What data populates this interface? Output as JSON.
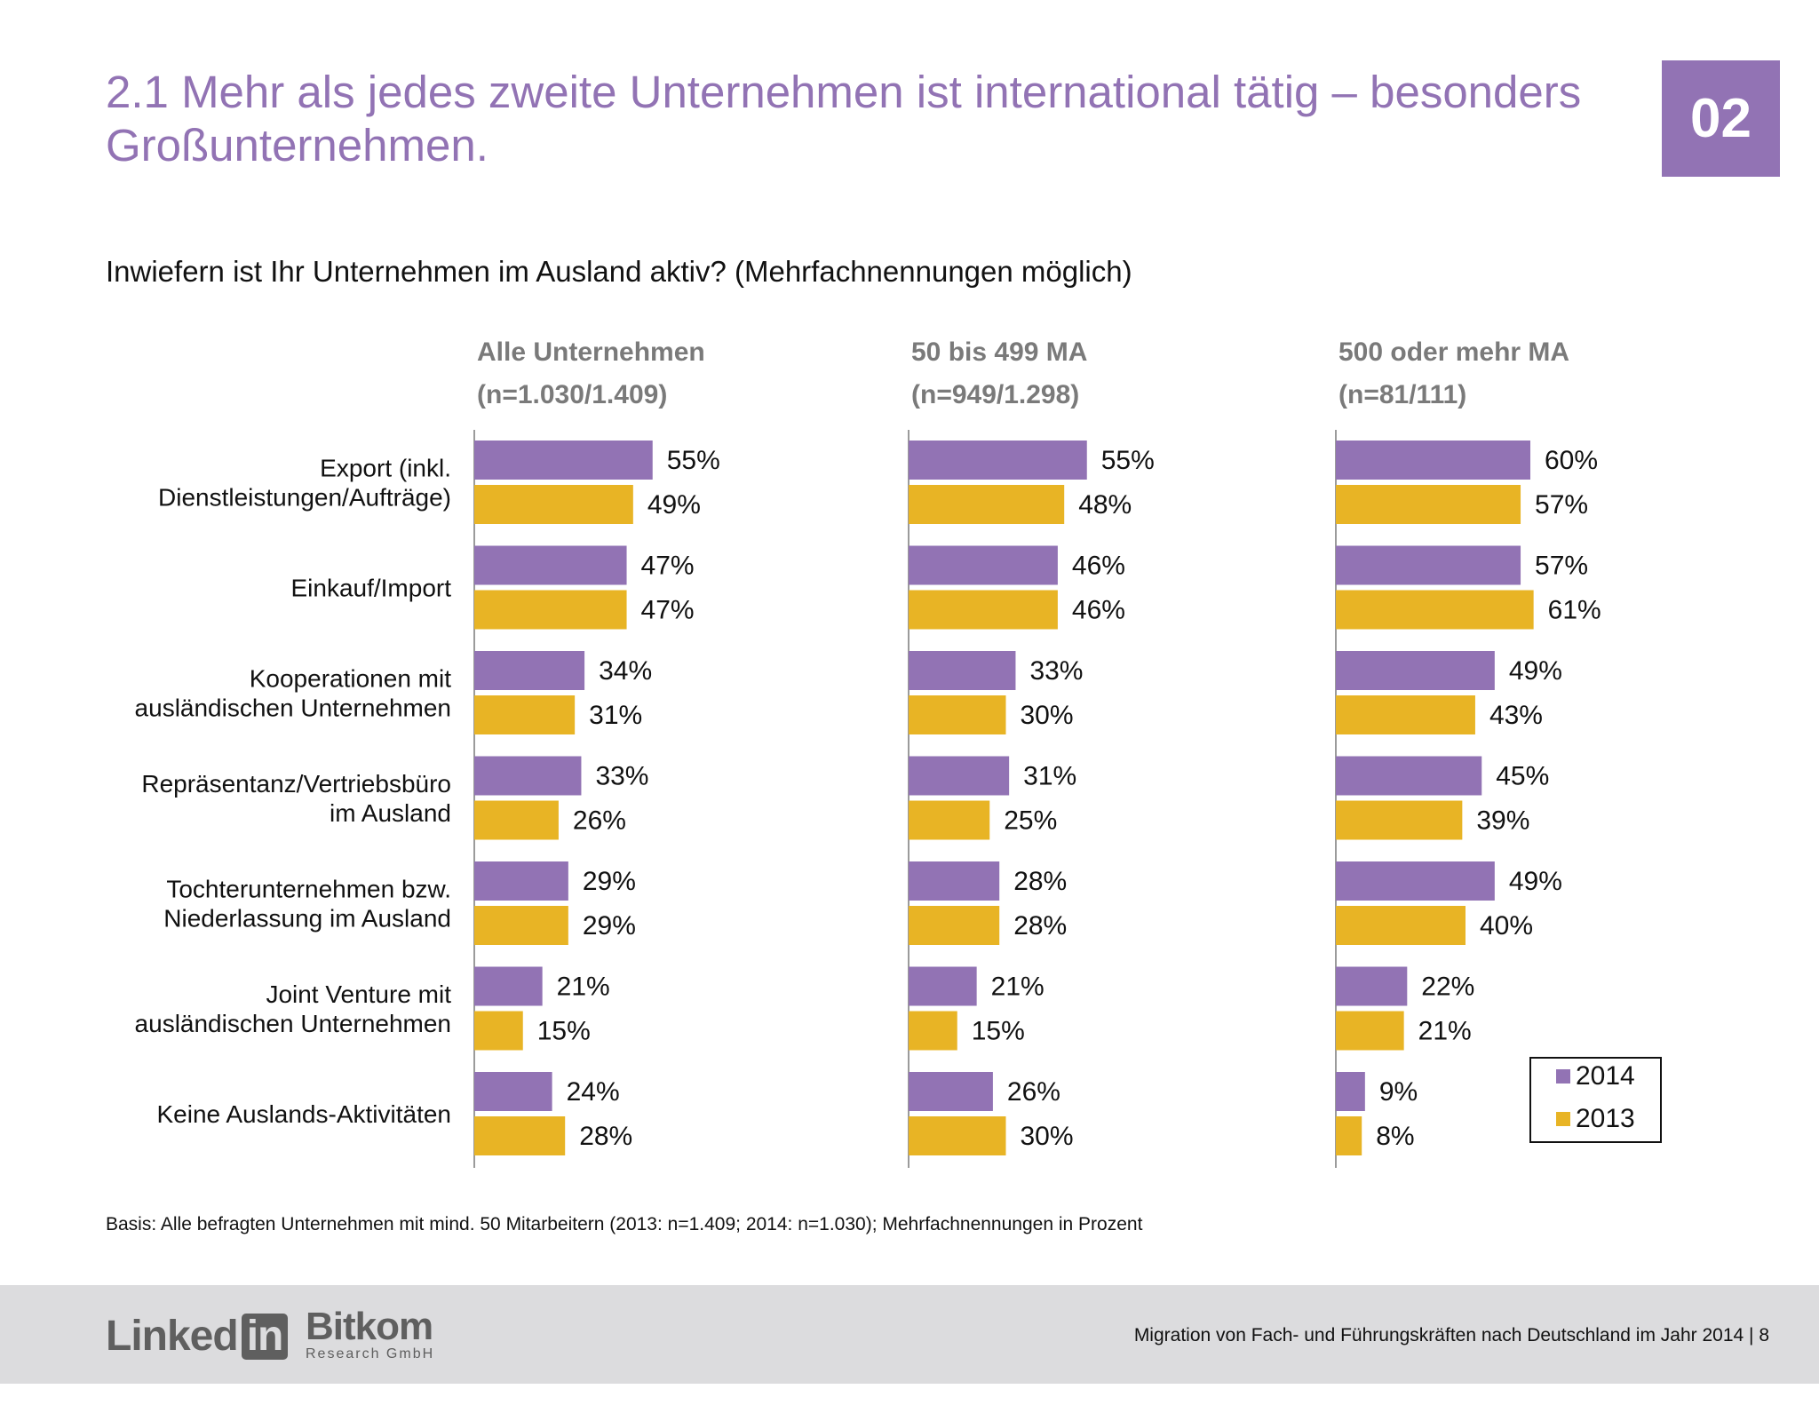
{
  "title": "2.1 Mehr als jedes zweite Unternehmen ist international tätig – besonders Großunternehmen.",
  "badge": "02",
  "question": "Inwiefern ist Ihr Unternehmen im Ausland aktiv? (Mehrfachnennungen möglich)",
  "footnote": "Basis: Alle befragten Unternehmen mit mind. 50 Mitarbeitern (2013: n=1.409; 2014: n=1.030); Mehrfachnennungen in Prozent",
  "footer": {
    "linkedin_text": "Linked",
    "linkedin_box": "in",
    "bitkom_main": "Bitkom",
    "bitkom_sub": "Research GmbH",
    "report": "Migration von Fach- und Führungskräften nach Deutschland im Jahr 2014  |  8"
  },
  "colors": {
    "s2014": "#9273b4",
    "s2013": "#e8b425",
    "title": "#9273b4",
    "panel_header": "#7a7a7a",
    "axis": "#9b9b9b"
  },
  "chart_data": {
    "type": "bar",
    "orientation": "horizontal",
    "unit": "%",
    "categories": [
      "Export (inkl. Dienstleistungen/Aufträge)",
      "Einkauf/Import",
      "Kooperationen mit ausländischen Unternehmen",
      "Repräsentanz/Vertriebsbüro im Ausland",
      "Tochterunternehmen bzw. Niederlassung im Ausland",
      "Joint Venture mit ausländischen Unternehmen",
      "Keine Auslands-Aktivitäten"
    ],
    "category_lines": [
      [
        "Export (inkl.",
        "Dienstleistungen/Aufträge)"
      ],
      [
        "Einkauf/Import"
      ],
      [
        "Kooperationen mit",
        "ausländischen Unternehmen"
      ],
      [
        "Repräsentanz/Vertriebsbüro",
        "im Ausland"
      ],
      [
        "Tochterunternehmen bzw.",
        "Niederlassung im Ausland"
      ],
      [
        "Joint Venture mit",
        "ausländischen Unternehmen"
      ],
      [
        "Keine Auslands-Aktivitäten"
      ]
    ],
    "legend": [
      "2014",
      "2013"
    ],
    "legend_position": "bottom-right",
    "panels": [
      {
        "title": "Alle Unternehmen",
        "subtitle": "(n=1.030/1.409)",
        "series": [
          {
            "name": "2014",
            "values": [
              55,
              47,
              34,
              33,
              29,
              21,
              24
            ]
          },
          {
            "name": "2013",
            "values": [
              49,
              47,
              31,
              26,
              29,
              15,
              28
            ]
          }
        ]
      },
      {
        "title": "50 bis 499 MA",
        "subtitle": "(n=949/1.298)",
        "series": [
          {
            "name": "2014",
            "values": [
              55,
              46,
              33,
              31,
              28,
              21,
              26
            ]
          },
          {
            "name": "2013",
            "values": [
              48,
              46,
              30,
              25,
              28,
              15,
              30
            ]
          }
        ]
      },
      {
        "title": "500 oder mehr MA",
        "subtitle": "(n=81/111)",
        "series": [
          {
            "name": "2014",
            "values": [
              60,
              57,
              49,
              45,
              49,
              22,
              9
            ]
          },
          {
            "name": "2013",
            "values": [
              57,
              61,
              43,
              39,
              40,
              21,
              8
            ]
          }
        ]
      }
    ]
  }
}
